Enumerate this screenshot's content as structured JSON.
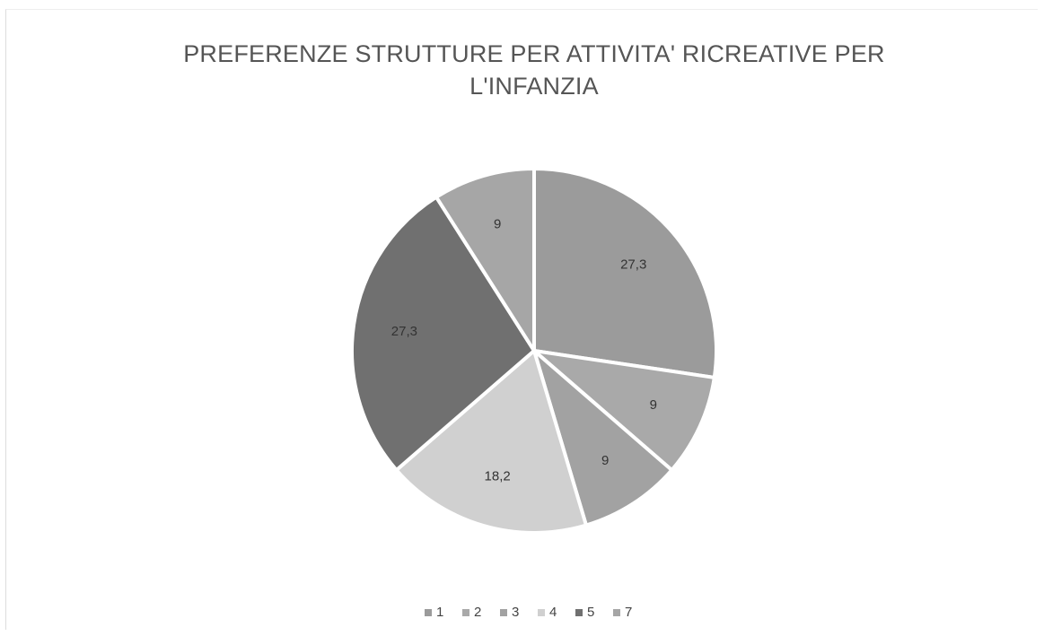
{
  "chart_data": {
    "type": "pie",
    "title": "PREFERENZE STRUTTURE PER ATTIVITA' RICREATIVE PER L'INFANZIA",
    "categories": [
      "1",
      "2",
      "3",
      "4",
      "5",
      "7"
    ],
    "values": [
      27.3,
      9,
      9,
      18.2,
      27.3,
      9
    ],
    "value_labels": [
      "27,3",
      "9",
      "9",
      "18,2",
      "27,3",
      "9"
    ],
    "colors": [
      "#9b9b9b",
      "#a9a9a9",
      "#a2a2a2",
      "#d0d0d0",
      "#707070",
      "#a6a6a6"
    ],
    "legend": "bottom"
  }
}
